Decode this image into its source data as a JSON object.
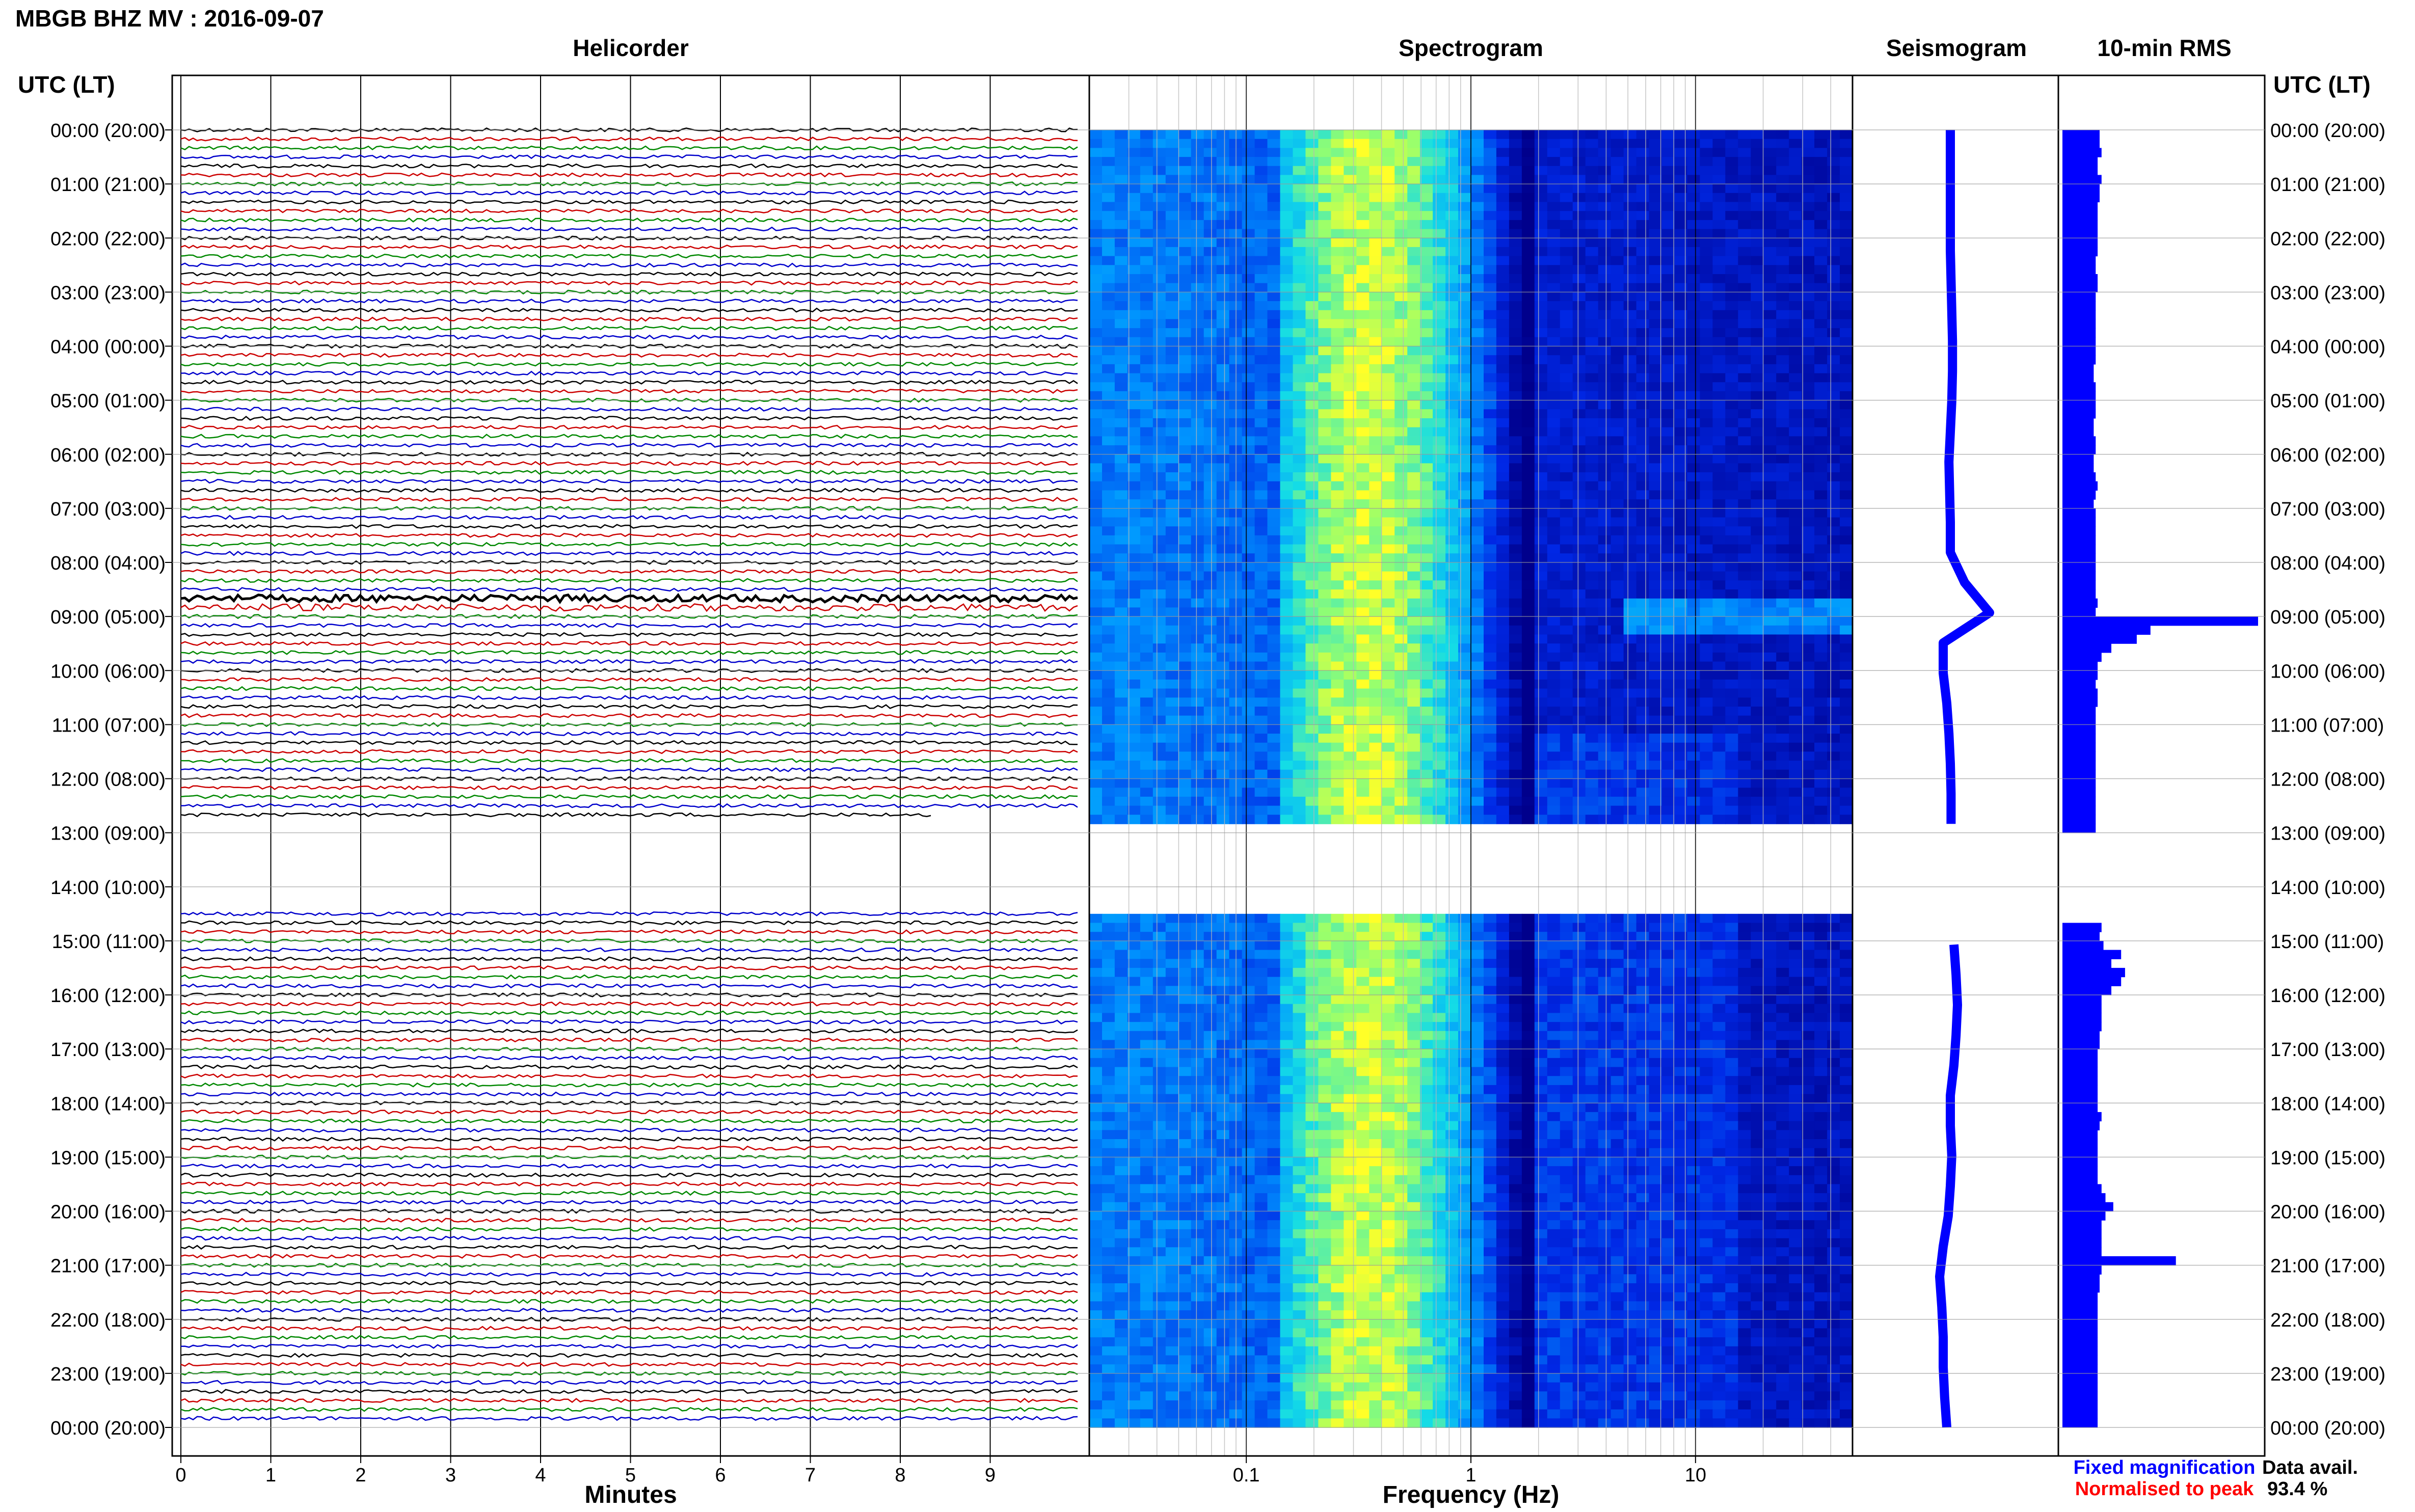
{
  "header": {
    "station_title": "MBGB BHZ MV : 2016-09-07",
    "utc_lt_left": "UTC (LT)",
    "utc_lt_right": "UTC (LT)"
  },
  "panels": {
    "helicorder_title": "Helicorder",
    "spectrogram_title": "Spectrogram",
    "seismogram_title": "Seismogram",
    "rms_title": "10-min RMS"
  },
  "axes": {
    "minutes_label": "Minutes",
    "frequency_label": "Frequency (Hz)",
    "minute_ticks": [
      "0",
      "1",
      "2",
      "3",
      "4",
      "5",
      "6",
      "7",
      "8",
      "9"
    ],
    "freq_ticks": [
      "0.1",
      "1",
      "10"
    ]
  },
  "legend": {
    "fixed": "Fixed magnification",
    "normalised": "Normalised to peak",
    "fixed_color": "#0000ff",
    "normalised_color": "#ff0000"
  },
  "data_avail": {
    "label": "Data avail.",
    "value": "93.4 %"
  },
  "colors": {
    "trace_cycle": [
      "#000000",
      "#cc0000",
      "#008800",
      "#0000cc"
    ],
    "bar": "#0000ff"
  },
  "chart_data": {
    "type": "heatmap",
    "time_labels": [
      "00:00 (20:00)",
      "01:00 (21:00)",
      "02:00 (22:00)",
      "03:00 (23:00)",
      "04:00 (00:00)",
      "05:00 (01:00)",
      "06:00 (02:00)",
      "07:00 (03:00)",
      "08:00 (04:00)",
      "09:00 (05:00)",
      "10:00 (06:00)",
      "11:00 (07:00)",
      "12:00 (08:00)",
      "13:00 (09:00)",
      "14:00 (10:00)",
      "15:00 (11:00)",
      "16:00 (12:00)",
      "17:00 (13:00)",
      "18:00 (14:00)",
      "19:00 (15:00)",
      "20:00 (16:00)",
      "21:00 (17:00)",
      "22:00 (18:00)",
      "23:00 (19:00)",
      "00:00 (20:00)"
    ],
    "helicorder_xlim": [
      0,
      10
    ],
    "frequency_xlim": [
      0.02,
      50
    ],
    "frequency_scale": "log",
    "data_gap_hours": [
      12.8,
      14.4
    ],
    "rms_10min": [
      0.19,
      0.19,
      0.2,
      0.18,
      0.18,
      0.2,
      0.19,
      0.19,
      0.18,
      0.18,
      0.18,
      0.18,
      0.18,
      0.18,
      0.17,
      0.17,
      0.18,
      0.18,
      0.17,
      0.17,
      0.17,
      0.17,
      0.17,
      0.17,
      0.17,
      0.17,
      0.16,
      0.16,
      0.17,
      0.17,
      0.17,
      0.17,
      0.16,
      0.16,
      0.17,
      0.17,
      0.16,
      0.16,
      0.17,
      0.18,
      0.17,
      0.16,
      0.17,
      0.17,
      0.17,
      0.17,
      0.17,
      0.17,
      0.17,
      0.17,
      0.17,
      0.17,
      0.18,
      0.17,
      1.0,
      0.45,
      0.38,
      0.25,
      0.2,
      0.18,
      0.18,
      0.17,
      0.18,
      0.18,
      0.17,
      0.17,
      0.17,
      0.17,
      0.17,
      0.17,
      0.17,
      0.17,
      0.17,
      0.17,
      0.17,
      0.17,
      0.17,
      0.17,
      null,
      null,
      null,
      null,
      null,
      null,
      null,
      null,
      null,
      null,
      0.2,
      0.19,
      0.21,
      0.3,
      0.25,
      0.32,
      0.3,
      0.25,
      0.2,
      0.2,
      0.2,
      0.2,
      0.19,
      0.19,
      0.18,
      0.18,
      0.18,
      0.18,
      0.18,
      0.18,
      0.18,
      0.2,
      0.19,
      0.18,
      0.18,
      0.18,
      0.18,
      0.18,
      0.18,
      0.2,
      0.22,
      0.26,
      0.22,
      0.2,
      0.2,
      0.2,
      0.2,
      0.58,
      0.2,
      0.19,
      0.19,
      0.18,
      0.18,
      0.18,
      0.18,
      0.18,
      0.18,
      0.18,
      0.18,
      0.18,
      0.18,
      0.18,
      0.18,
      0.18,
      0.18,
      0.18
    ],
    "seismogram_offset": [
      0,
      0,
      0,
      0,
      0,
      0.01,
      0.02,
      0.03,
      0.03,
      0.02,
      0,
      -0.02,
      -0.01,
      0,
      0,
      0.2,
      0.55,
      -0.1,
      -0.1,
      -0.05,
      -0.02,
      0,
      0.01,
      0.01,
      null,
      null,
      null,
      0.05,
      0.08,
      0.1,
      0.08,
      0.05,
      0,
      0,
      0.02,
      0,
      -0.03,
      -0.1,
      -0.15,
      -0.12,
      -0.1,
      -0.1,
      -0.08,
      -0.05
    ]
  }
}
